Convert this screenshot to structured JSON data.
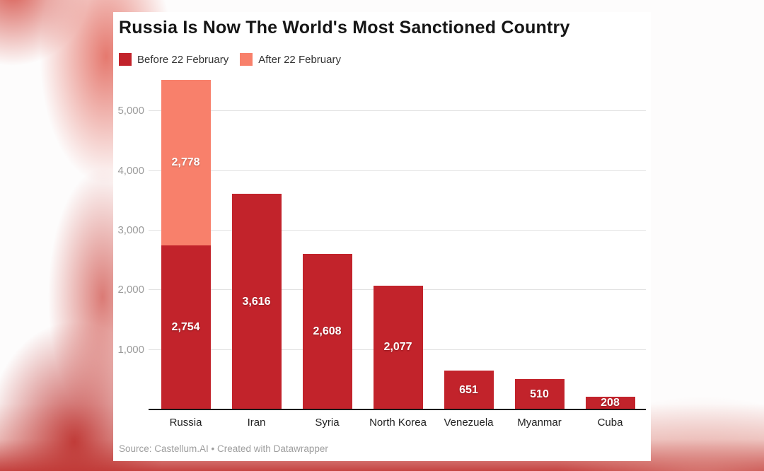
{
  "chart_data": {
    "type": "bar",
    "stacked": true,
    "title": "Russia Is Now The World's Most Sanctioned Country",
    "categories": [
      "Russia",
      "Iran",
      "Syria",
      "North Korea",
      "Venezuela",
      "Myanmar",
      "Cuba"
    ],
    "series": [
      {
        "name": "Before 22 February",
        "color": "#c2232b",
        "values": [
          2754,
          3616,
          2608,
          2077,
          651,
          510,
          208
        ]
      },
      {
        "name": "After 22 February",
        "color": "#f8806b",
        "values": [
          2778,
          0,
          0,
          0,
          0,
          0,
          0
        ]
      }
    ],
    "y_ticks": [
      1000,
      2000,
      3000,
      4000,
      5000
    ],
    "ylim": [
      0,
      5539
    ],
    "grid": true,
    "legend_position": "top-left",
    "xlabel": "",
    "ylabel": "",
    "source": "Source: Castellum.AI • Created with Datawrapper"
  },
  "colors": {
    "card_background": "#ffffff",
    "title": "#161616",
    "tick_label": "#9b9b9b",
    "gridline": "#e2e2e2",
    "baseline": "#1a1a1a",
    "category_label": "#222222",
    "legend_label": "#333333",
    "bar_value_label": "#ffffff",
    "source": "#9e9e9e",
    "backdrop_red": "#c23a37"
  }
}
